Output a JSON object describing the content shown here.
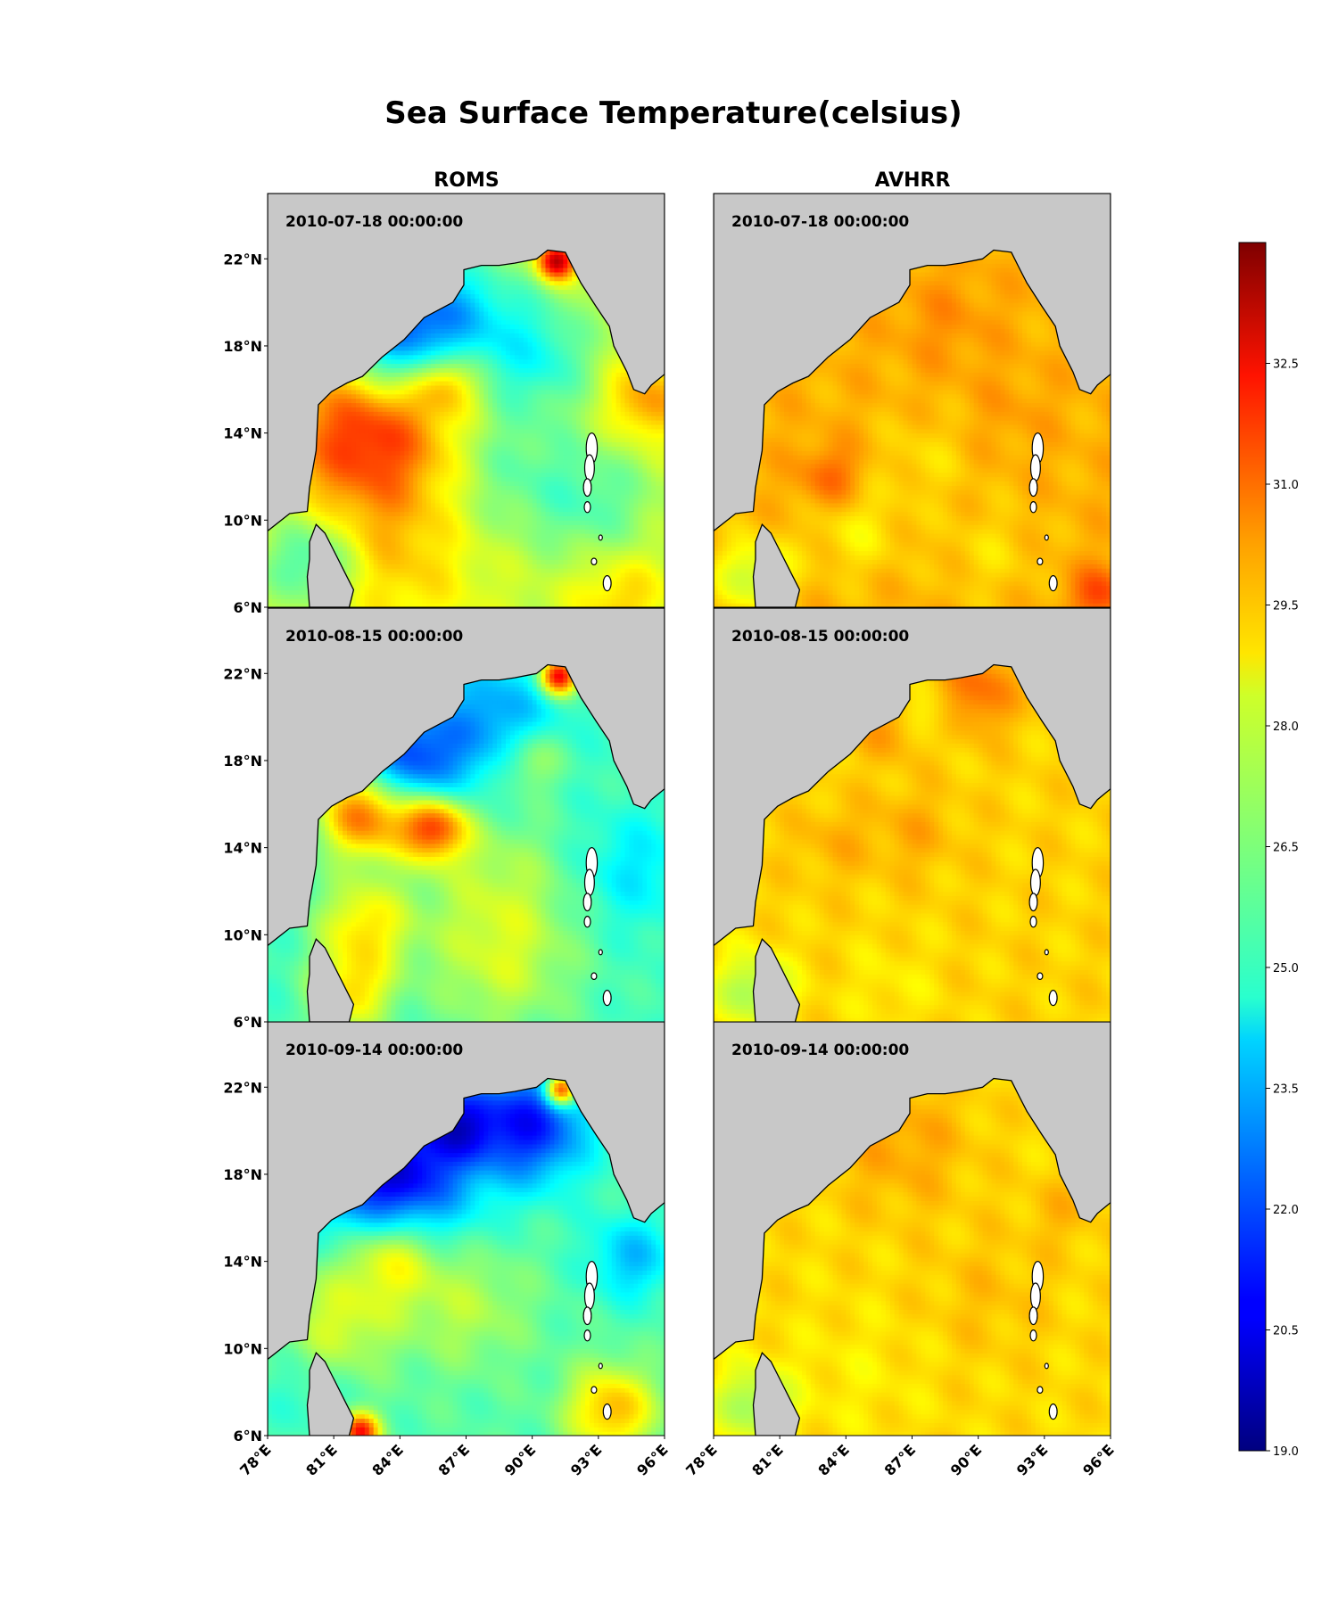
{
  "title": "Sea Surface Temperature(celsius)",
  "columns": [
    "ROMS",
    "AVHRR"
  ],
  "dates": [
    "2010-07-18 00:00:00",
    "2010-08-15 00:00:00",
    "2010-09-14 00:00:00"
  ],
  "lat_labels": [
    "22°N",
    "18°N",
    "14°N",
    "10°N",
    "6°N"
  ],
  "lon_labels": [
    "78°E",
    "81°E",
    "84°E",
    "87°E",
    "90°E",
    "93°E",
    "96°E"
  ],
  "map_extent": {
    "lon": [
      78,
      96
    ],
    "lat": [
      6,
      25
    ]
  },
  "colorbar": {
    "colormap": "jet",
    "min": 19.0,
    "max": 34.0,
    "tick_labels": [
      "19.0",
      "20.5",
      "22.0",
      "23.5",
      "25.0",
      "26.5",
      "28.0",
      "29.5",
      "31.0",
      "32.5"
    ]
  },
  "colors": {
    "land": "#c8c8c8",
    "coast": "#000000"
  },
  "fields": {
    "roms": [
      {
        "base": 27.6,
        "features": [
          {
            "lon": 82.7,
            "lat": 14.2,
            "r": 2.8,
            "v": 4.2
          },
          {
            "lon": 83.6,
            "lat": 18.4,
            "r": 2.0,
            "v": -5.0
          },
          {
            "lon": 86.0,
            "lat": 19.8,
            "r": 1.8,
            "v": -2.2
          },
          {
            "lon": 88.6,
            "lat": 18.6,
            "r": 2.3,
            "v": -2.0
          },
          {
            "lon": 90.7,
            "lat": 17.3,
            "r": 1.6,
            "v": -1.4
          },
          {
            "lon": 86.2,
            "lat": 16.4,
            "r": 1.0,
            "v": 2.4
          },
          {
            "lon": 88.7,
            "lat": 12.5,
            "r": 2.3,
            "v": -1.5
          },
          {
            "lon": 92.8,
            "lat": 10.8,
            "r": 2.0,
            "v": -1.6
          },
          {
            "lon": 91.1,
            "lat": 21.9,
            "r": 0.6,
            "v": 6.0
          },
          {
            "lon": 80.0,
            "lat": 8.2,
            "r": 1.5,
            "v": -2.4
          },
          {
            "lon": 95.2,
            "lat": 15.5,
            "r": 1.3,
            "v": 2.3
          },
          {
            "lon": 84.0,
            "lat": 8.0,
            "r": 2.5,
            "v": 1.3
          },
          {
            "lon": 94.0,
            "lat": 6.5,
            "r": 1.5,
            "v": 1.5
          }
        ]
      },
      {
        "base": 25.6,
        "features": [
          {
            "lon": 82.4,
            "lat": 15.6,
            "r": 1.4,
            "v": 5.4
          },
          {
            "lon": 85.5,
            "lat": 15.0,
            "r": 1.1,
            "v": 5.8
          },
          {
            "lon": 84.6,
            "lat": 18.0,
            "r": 1.9,
            "v": -3.8
          },
          {
            "lon": 88.5,
            "lat": 20.2,
            "r": 1.8,
            "v": -2.2
          },
          {
            "lon": 88.4,
            "lat": 12.5,
            "r": 2.4,
            "v": 1.4
          },
          {
            "lon": 82.4,
            "lat": 10.5,
            "r": 1.5,
            "v": 3.0
          },
          {
            "lon": 81.8,
            "lat": 7.4,
            "r": 1.3,
            "v": 3.0
          },
          {
            "lon": 91.2,
            "lat": 21.9,
            "r": 0.6,
            "v": 7.0
          },
          {
            "lon": 88.6,
            "lat": 8.6,
            "r": 2.4,
            "v": 1.8
          },
          {
            "lon": 94.6,
            "lat": 13.0,
            "r": 1.8,
            "v": -1.3
          },
          {
            "lon": 90.0,
            "lat": 18.1,
            "r": 1.0,
            "v": 1.8
          }
        ]
      },
      {
        "base": 25.9,
        "features": [
          {
            "lon": 83.6,
            "lat": 17.6,
            "r": 2.3,
            "v": -6.0
          },
          {
            "lon": 89.8,
            "lat": 20.3,
            "r": 1.9,
            "v": -4.8
          },
          {
            "lon": 86.5,
            "lat": 20.4,
            "r": 1.2,
            "v": -3.5
          },
          {
            "lon": 83.6,
            "lat": 14.6,
            "r": 1.6,
            "v": 3.8
          },
          {
            "lon": 81.2,
            "lat": 11.2,
            "r": 1.8,
            "v": 1.9
          },
          {
            "lon": 93.6,
            "lat": 7.2,
            "r": 1.4,
            "v": 3.6
          },
          {
            "lon": 82.2,
            "lat": 6.2,
            "r": 0.6,
            "v": 6.0
          },
          {
            "lon": 91.3,
            "lat": 21.9,
            "r": 0.5,
            "v": 7.0
          },
          {
            "lon": 87.0,
            "lat": 12.0,
            "r": 2.0,
            "v": 1.4
          },
          {
            "lon": 94.5,
            "lat": 14.2,
            "r": 1.4,
            "v": -2.2
          },
          {
            "lon": 79.7,
            "lat": 8.0,
            "r": 1.4,
            "v": -0.7
          }
        ]
      }
    ],
    "avhrr": [
      {
        "base": 29.5,
        "features": [
          {
            "lon": 83.3,
            "lat": 12.0,
            "r": 1.0,
            "v": 1.2
          },
          {
            "lon": 84.5,
            "lat": 9.5,
            "r": 1.5,
            "v": -0.9
          },
          {
            "lon": 87.5,
            "lat": 12.8,
            "r": 1.5,
            "v": -0.6
          },
          {
            "lon": 95.5,
            "lat": 6.6,
            "r": 0.9,
            "v": 1.6
          },
          {
            "lon": 79.8,
            "lat": 7.5,
            "r": 1.2,
            "v": -2.0
          },
          {
            "lon": 88.5,
            "lat": 19.2,
            "r": 1.6,
            "v": 0.5
          },
          {
            "lon": 90.5,
            "lat": 8.5,
            "r": 1.6,
            "v": -0.6
          },
          {
            "lon": 91.5,
            "lat": 15.0,
            "r": 1.3,
            "v": 0.3
          }
        ]
      },
      {
        "base": 29.0,
        "features": [
          {
            "lon": 89.8,
            "lat": 21.2,
            "r": 1.3,
            "v": 1.6
          },
          {
            "lon": 87.8,
            "lat": 20.3,
            "r": 0.9,
            "v": -1.0
          },
          {
            "lon": 86.0,
            "lat": 19.5,
            "r": 1.0,
            "v": 0.9
          },
          {
            "lon": 79.8,
            "lat": 7.5,
            "r": 1.2,
            "v": -2.0
          },
          {
            "lon": 83.4,
            "lat": 14.3,
            "r": 1.2,
            "v": 0.5
          },
          {
            "lon": 87.0,
            "lat": 14.8,
            "r": 1.4,
            "v": 0.6
          },
          {
            "lon": 86.0,
            "lat": 7.6,
            "r": 1.5,
            "v": -0.4
          }
        ]
      },
      {
        "base": 28.9,
        "features": [
          {
            "lon": 86.5,
            "lat": 19.5,
            "r": 2.2,
            "v": 0.8
          },
          {
            "lon": 79.8,
            "lat": 7.5,
            "r": 1.2,
            "v": -2.0
          },
          {
            "lon": 90.5,
            "lat": 12.5,
            "r": 2.0,
            "v": 0.4
          },
          {
            "lon": 84.5,
            "lat": 8.8,
            "r": 2.0,
            "v": -0.3
          },
          {
            "lon": 93.8,
            "lat": 16.3,
            "r": 1.2,
            "v": 0.5
          }
        ]
      }
    ]
  }
}
